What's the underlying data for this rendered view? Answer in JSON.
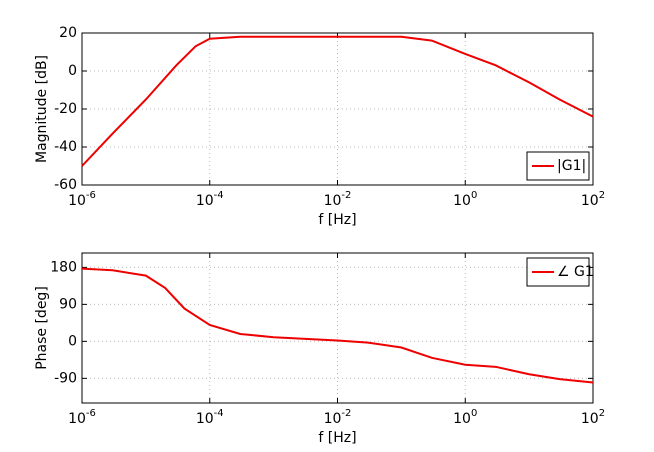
{
  "chart_data": [
    {
      "type": "line",
      "xlabel": "f [Hz]",
      "ylabel": "Magnitude [dB]",
      "xscale": "log",
      "grid": true,
      "legend": "lower right",
      "x": [
        1e-06,
        3e-06,
        1e-05,
        3e-05,
        6e-05,
        0.0001,
        0.0003,
        0.001,
        0.01,
        0.1,
        0.3,
        1,
        3,
        10,
        30,
        100
      ],
      "series": [
        {
          "name": "|G1|",
          "color": "#ee0000",
          "values": [
            -50,
            -33,
            -15,
            3,
            13,
            17,
            18,
            18,
            18,
            18,
            16,
            9,
            3,
            -6,
            -15,
            -24
          ]
        }
      ],
      "xlim": [
        1e-06,
        100
      ],
      "xticks": [
        {
          "value": 1e-06,
          "label": "10-6"
        },
        {
          "value": 0.0001,
          "label": "10-4"
        },
        {
          "value": 0.01,
          "label": "10-2"
        },
        {
          "value": 1,
          "label": "100"
        },
        {
          "value": 100,
          "label": "102"
        }
      ],
      "ylim": [
        -60,
        20
      ],
      "yticks": [
        -60,
        -40,
        -20,
        0,
        20
      ]
    },
    {
      "type": "line",
      "xlabel": "f [Hz]",
      "ylabel": "Phase [deg]",
      "xscale": "log",
      "grid": true,
      "legend": "upper right",
      "x": [
        1e-06,
        3e-06,
        1e-05,
        2e-05,
        4e-05,
        0.0001,
        0.0003,
        0.001,
        0.01,
        0.03,
        0.1,
        0.3,
        1,
        3,
        10,
        30,
        100
      ],
      "series": [
        {
          "name": "∠ G1",
          "color": "#ee0000",
          "values": [
            177,
            173,
            160,
            130,
            80,
            40,
            18,
            10,
            2,
            -3,
            -15,
            -40,
            -57,
            -62,
            -80,
            -92,
            -100
          ]
        }
      ],
      "xlim": [
        1e-06,
        100
      ],
      "xticks": [
        {
          "value": 1e-06,
          "label": "10-6"
        },
        {
          "value": 0.0001,
          "label": "10-4"
        },
        {
          "value": 0.01,
          "label": "10-2"
        },
        {
          "value": 1,
          "label": "100"
        },
        {
          "value": 100,
          "label": "102"
        }
      ],
      "ylim": [
        -150,
        215
      ],
      "yticks": [
        -90,
        0,
        90,
        180
      ]
    }
  ]
}
